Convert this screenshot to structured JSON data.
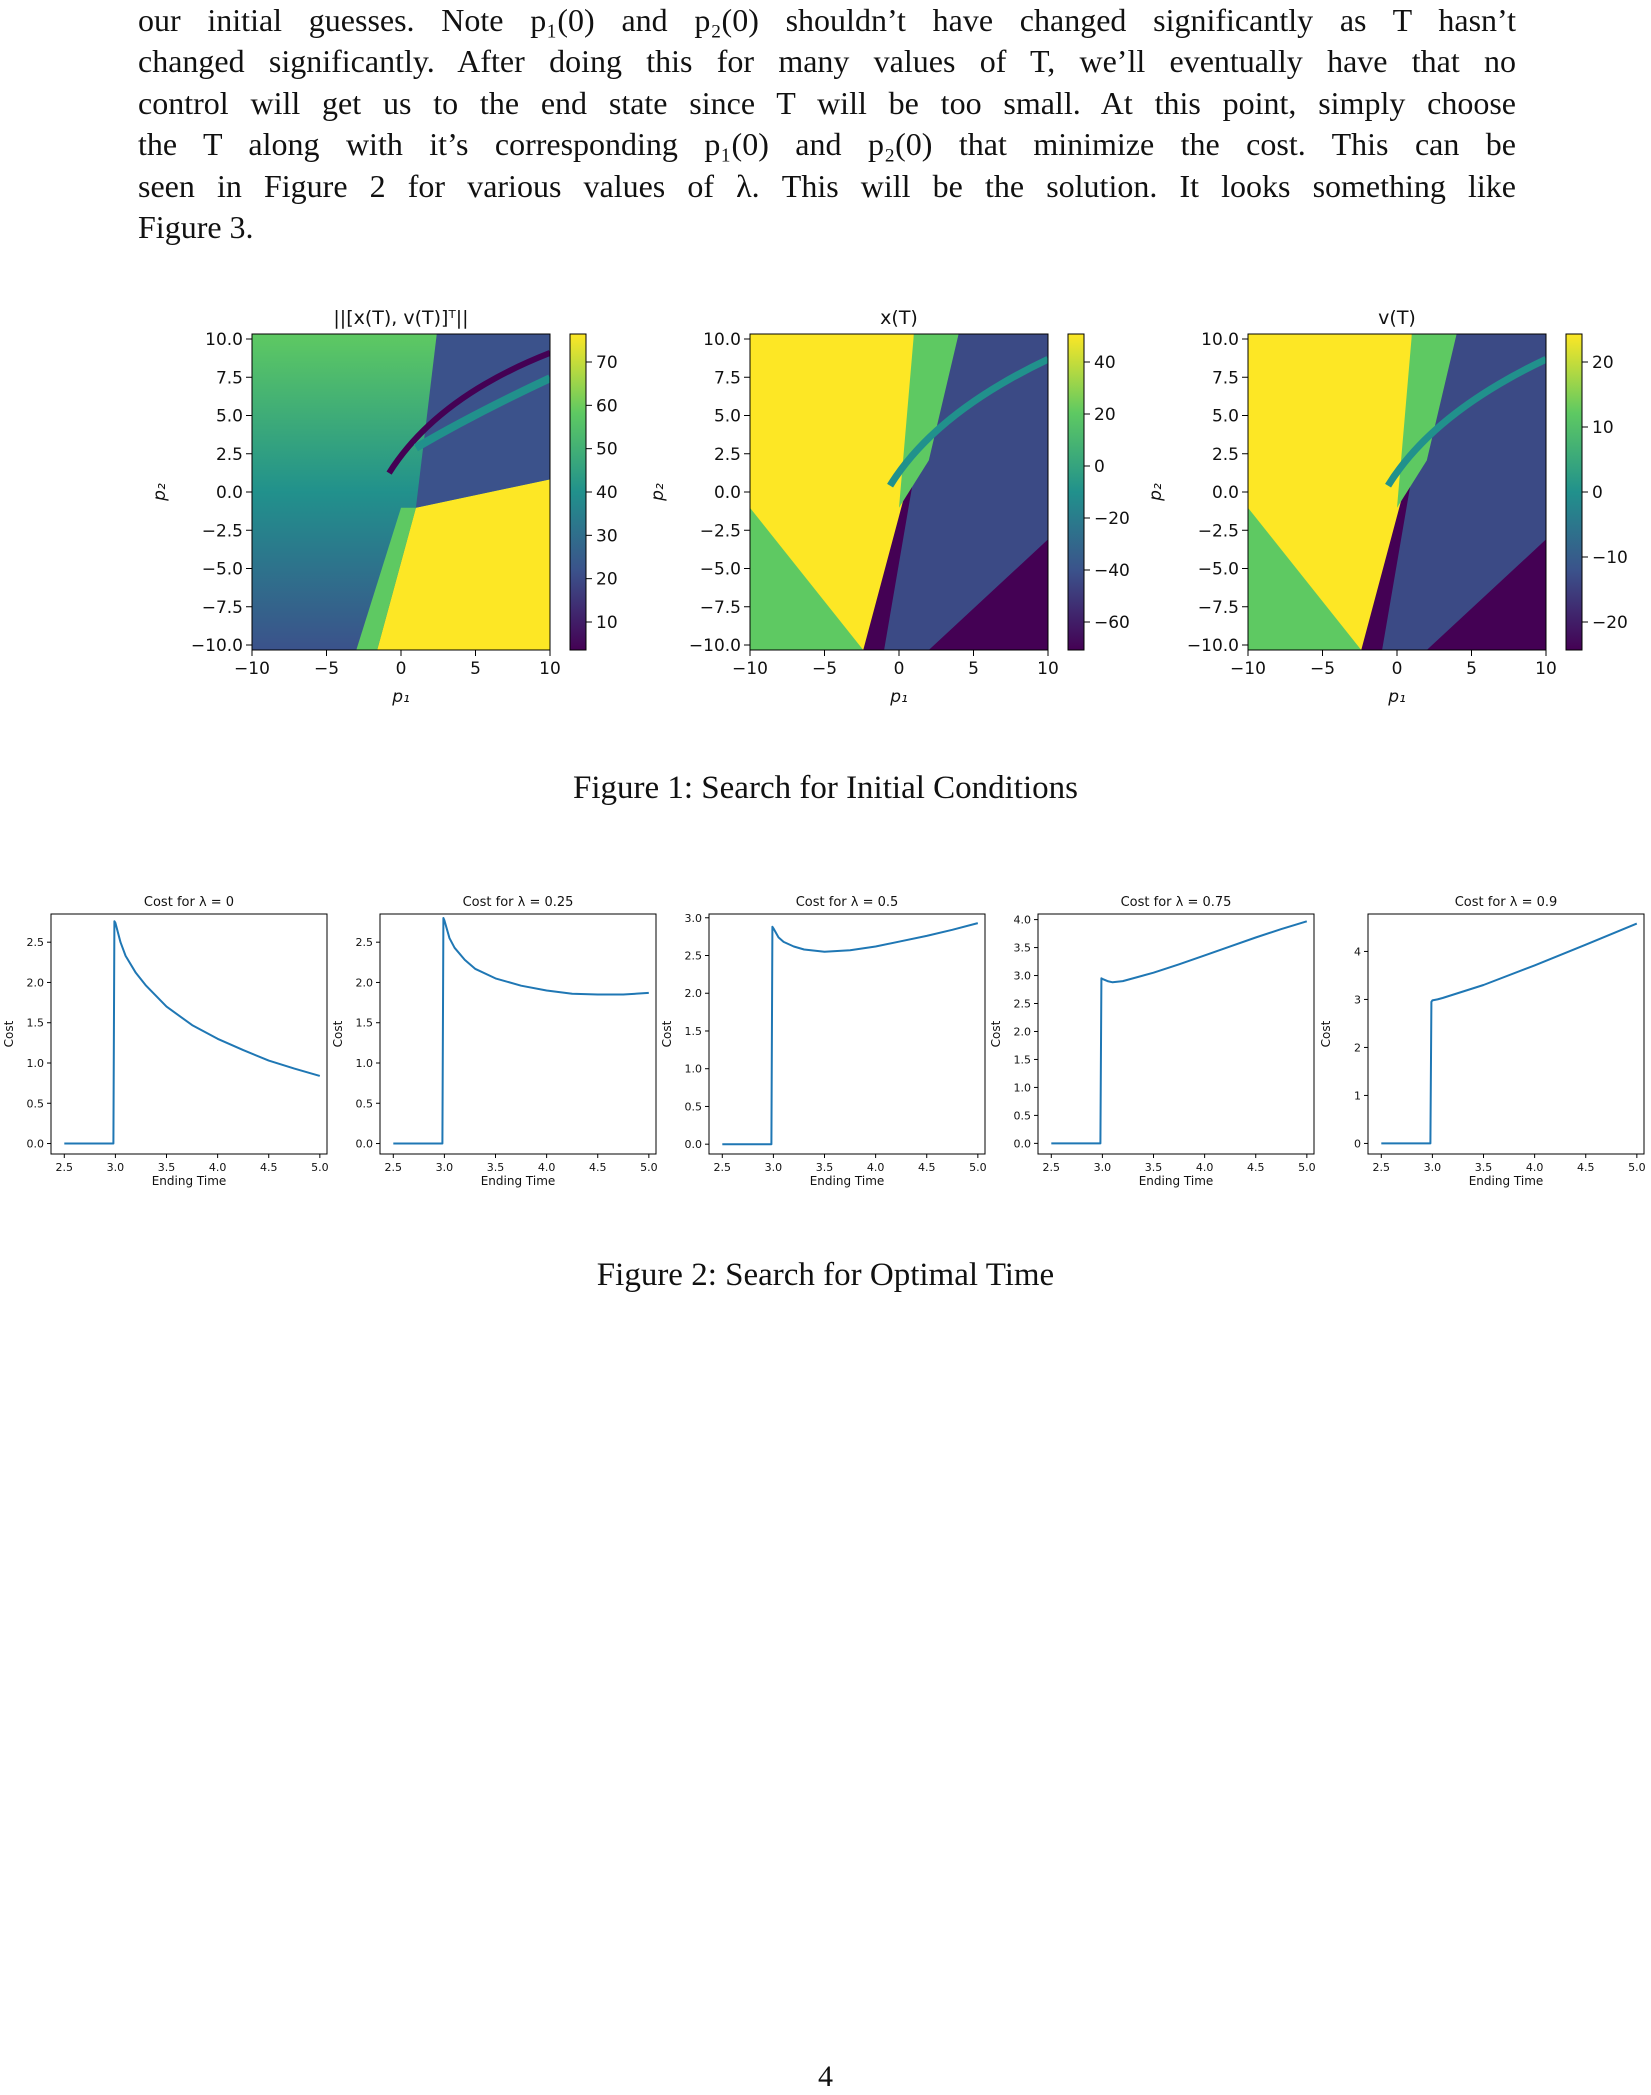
{
  "paragraph": {
    "lines": [
      "our initial guesses. Note p₁(0) and p₂(0) shouldn’t have changed significantly as T hasn’t",
      "changed significantly. After doing this for many values of T, we’ll eventually have that no",
      "control will get us to the end state since T will be too small. At this point, simply choose",
      "the T along with it’s corresponding p₁(0) and p₂(0) that minimize the cost. This can be",
      "seen in Figure 2 for various values of λ. This will be the solution. It looks something like",
      "Figure 3."
    ]
  },
  "figure1": {
    "caption": "Figure 1: Search for Initial Conditions",
    "colormap": [
      "#440154",
      "#3b528b",
      "#21918c",
      "#5ec962",
      "#fde725"
    ],
    "xlabel": "p₁",
    "ylabel": "p₂",
    "xticks": [
      "−10",
      "−5",
      "0",
      "5",
      "10"
    ],
    "yticks": [
      "10.0",
      "7.5",
      "5.0",
      "2.5",
      "0.0",
      "−2.5",
      "−5.0",
      "−7.5",
      "−10.0"
    ],
    "panels": [
      {
        "title": "||[x(T), v(T)]ᵀ||",
        "colorbar_ticks": [
          "70",
          "60",
          "50",
          "40",
          "30",
          "20",
          "10"
        ]
      },
      {
        "title": "x(T)",
        "colorbar_ticks": [
          "40",
          "20",
          "0",
          "−20",
          "−40",
          "−60"
        ]
      },
      {
        "title": "v(T)",
        "colorbar_ticks": [
          "20",
          "10",
          "0",
          "−10",
          "−20"
        ]
      }
    ]
  },
  "figure2": {
    "caption": "Figure 2: Search for Optimal Time",
    "line_color": "#1f77b4",
    "xlabel": "Ending Time",
    "ylabel": "Cost",
    "xticks": [
      "2.5",
      "3.0",
      "3.5",
      "4.0",
      "4.5",
      "5.0"
    ]
  },
  "chart_data": [
    {
      "type": "line",
      "title": "Cost for λ = 0",
      "xlabel": "Ending Time",
      "ylabel": "Cost",
      "xlim": [
        2.37,
        5.07
      ],
      "ylim": [
        -0.13,
        2.85
      ],
      "yticks": [
        "0.0",
        "0.5",
        "1.0",
        "1.5",
        "2.0",
        "2.5"
      ],
      "x": [
        2.5,
        2.98,
        2.99,
        3.0,
        3.05,
        3.1,
        3.2,
        3.3,
        3.5,
        3.75,
        4.0,
        4.25,
        4.5,
        4.75,
        5.0
      ],
      "y": [
        0.0,
        0.0,
        2.76,
        2.74,
        2.5,
        2.33,
        2.12,
        1.96,
        1.7,
        1.47,
        1.3,
        1.16,
        1.03,
        0.93,
        0.84
      ]
    },
    {
      "type": "line",
      "title": "Cost for λ = 0.25",
      "xlabel": "Ending Time",
      "ylabel": "Cost",
      "xlim": [
        2.37,
        5.07
      ],
      "ylim": [
        -0.13,
        2.85
      ],
      "yticks": [
        "0.0",
        "0.5",
        "1.0",
        "1.5",
        "2.0",
        "2.5"
      ],
      "x": [
        2.5,
        2.98,
        2.99,
        3.0,
        3.05,
        3.1,
        3.2,
        3.3,
        3.5,
        3.75,
        4.0,
        4.25,
        4.5,
        4.75,
        5.0
      ],
      "y": [
        0.0,
        0.0,
        2.8,
        2.77,
        2.55,
        2.43,
        2.28,
        2.17,
        2.05,
        1.96,
        1.9,
        1.86,
        1.85,
        1.85,
        1.87
      ]
    },
    {
      "type": "line",
      "title": "Cost for λ = 0.5",
      "xlabel": "Ending Time",
      "ylabel": "Cost",
      "xlim": [
        2.37,
        5.07
      ],
      "ylim": [
        -0.13,
        3.05
      ],
      "yticks": [
        "0.0",
        "0.5",
        "1.0",
        "1.5",
        "2.0",
        "2.5",
        "3.0"
      ],
      "x": [
        2.5,
        2.98,
        2.99,
        3.0,
        3.05,
        3.1,
        3.2,
        3.3,
        3.5,
        3.75,
        4.0,
        4.25,
        4.5,
        4.75,
        5.0
      ],
      "y": [
        0.0,
        0.0,
        2.88,
        2.86,
        2.74,
        2.68,
        2.62,
        2.58,
        2.55,
        2.57,
        2.62,
        2.69,
        2.76,
        2.84,
        2.93
      ]
    },
    {
      "type": "line",
      "title": "Cost for λ = 0.75",
      "xlabel": "Ending Time",
      "ylabel": "Cost",
      "xlim": [
        2.37,
        5.07
      ],
      "ylim": [
        -0.19,
        4.1
      ],
      "yticks": [
        "0.0",
        "0.5",
        "1.0",
        "1.5",
        "2.0",
        "2.5",
        "3.0",
        "3.5",
        "4.0"
      ],
      "x": [
        2.5,
        2.98,
        2.99,
        3.0,
        3.05,
        3.1,
        3.2,
        3.5,
        3.75,
        4.0,
        4.25,
        4.5,
        4.75,
        5.0
      ],
      "y": [
        0.0,
        0.0,
        2.95,
        2.94,
        2.9,
        2.88,
        2.9,
        3.05,
        3.2,
        3.36,
        3.52,
        3.68,
        3.83,
        3.97
      ]
    },
    {
      "type": "line",
      "title": "Cost for λ = 0.9",
      "xlabel": "Ending Time",
      "ylabel": "Cost",
      "xlim": [
        2.37,
        5.07
      ],
      "ylim": [
        -0.22,
        4.78
      ],
      "yticks": [
        "0",
        "1",
        "2",
        "3",
        "4"
      ],
      "x": [
        2.5,
        2.98,
        2.99,
        3.0,
        3.05,
        3.1,
        3.5,
        4.0,
        4.5,
        5.0
      ],
      "y": [
        0.0,
        0.0,
        2.95,
        2.98,
        3.0,
        3.03,
        3.3,
        3.71,
        4.14,
        4.58
      ]
    }
  ],
  "page_number": "4"
}
